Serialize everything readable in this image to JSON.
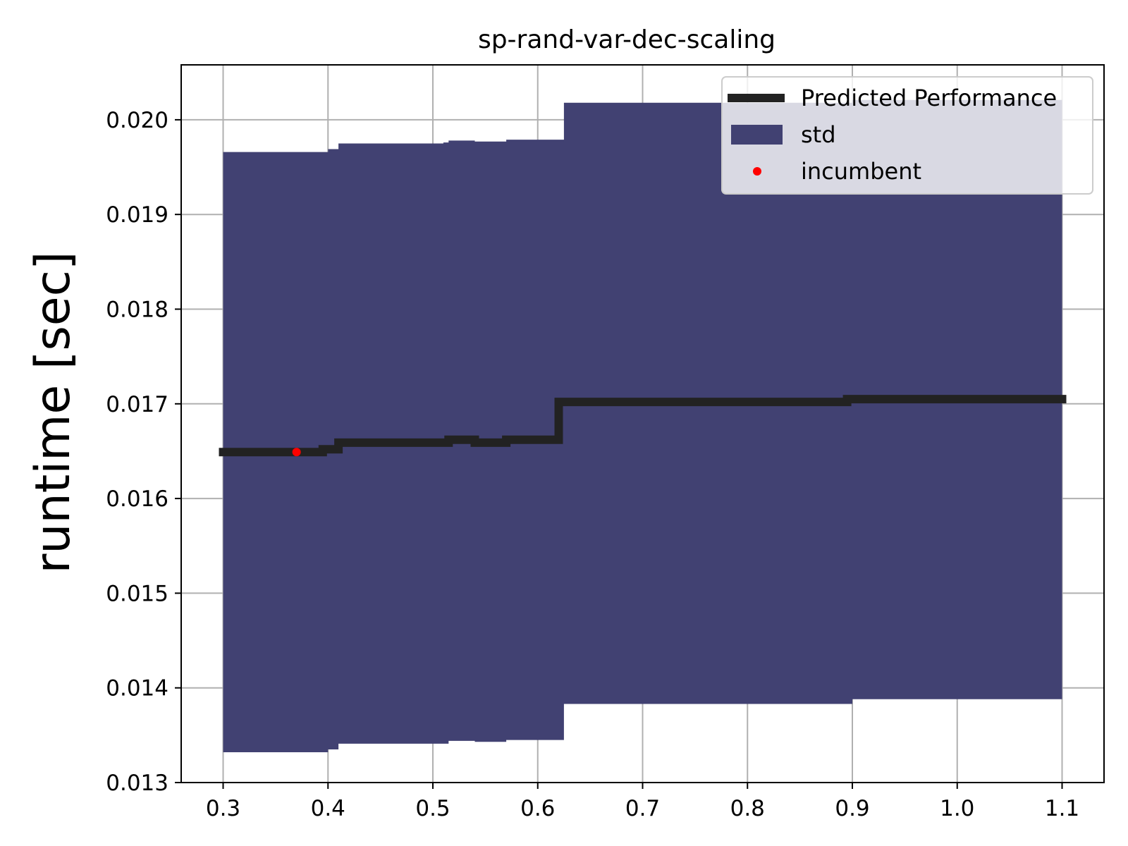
{
  "chart_data": {
    "type": "line",
    "title": "sp-rand-var-dec-scaling",
    "xlabel": "",
    "ylabel": "runtime [sec]",
    "xlim": [
      0.26,
      1.14
    ],
    "ylim": [
      0.013,
      0.02058
    ],
    "x_ticks": [
      "0.3",
      "0.4",
      "0.5",
      "0.6",
      "0.7",
      "0.8",
      "0.9",
      "1.0",
      "1.1"
    ],
    "y_ticks": [
      "0.013",
      "0.014",
      "0.015",
      "0.016",
      "0.017",
      "0.018",
      "0.019",
      "0.020"
    ],
    "grid": true,
    "legend_position": "upper right",
    "series": [
      {
        "name": "Predicted Performance",
        "kind": "step-line",
        "color": "#222222",
        "points": [
          [
            0.296,
            0.01649
          ],
          [
            0.395,
            0.01649
          ],
          [
            0.395,
            0.01652
          ],
          [
            0.41,
            0.01652
          ],
          [
            0.41,
            0.01659
          ],
          [
            0.515,
            0.01659
          ],
          [
            0.515,
            0.01662
          ],
          [
            0.54,
            0.01662
          ],
          [
            0.54,
            0.01659
          ],
          [
            0.57,
            0.01659
          ],
          [
            0.57,
            0.01662
          ],
          [
            0.62,
            0.01662
          ],
          [
            0.62,
            0.01702
          ],
          [
            0.895,
            0.01702
          ],
          [
            0.895,
            0.01705
          ],
          [
            1.104,
            0.01705
          ]
        ]
      },
      {
        "name": "std",
        "kind": "band",
        "color": "#414172",
        "x": [
          0.3,
          0.395,
          0.4,
          0.41,
          0.51,
          0.515,
          0.54,
          0.57,
          0.62,
          0.625,
          0.895,
          0.9,
          1.1
        ],
        "upper": [
          0.01966,
          0.01966,
          0.01969,
          0.01975,
          0.01976,
          0.01978,
          0.01977,
          0.01979,
          0.01979,
          0.02018,
          0.02018,
          0.02021,
          0.02021
        ],
        "lower": [
          0.01332,
          0.01332,
          0.01335,
          0.01341,
          0.01341,
          0.01344,
          0.01343,
          0.01345,
          0.01345,
          0.01383,
          0.01383,
          0.01388,
          0.01388
        ]
      },
      {
        "name": "incumbent",
        "kind": "scatter",
        "color": "#ff0000",
        "points": [
          [
            0.37,
            0.01649
          ]
        ]
      }
    ]
  }
}
